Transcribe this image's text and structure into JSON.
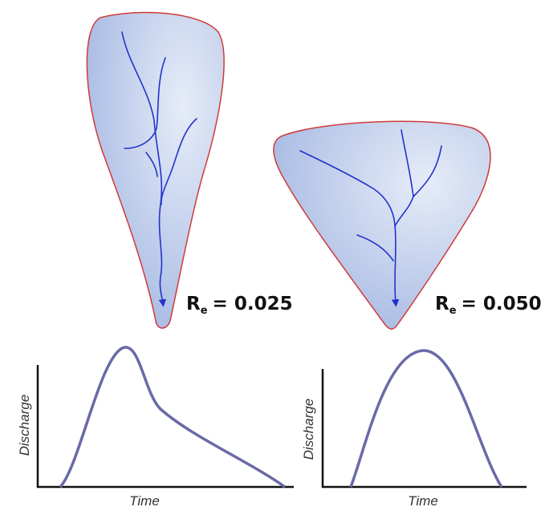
{
  "basins": [
    {
      "label": {
        "symbol": "R",
        "subscript": "e",
        "value": "= 0.025"
      },
      "hydrograph": {
        "y_axis_label": "Discharge",
        "x_axis_label": "Time"
      }
    },
    {
      "label": {
        "symbol": "R",
        "subscript": "e",
        "value": "= 0.050"
      },
      "hydrograph": {
        "y_axis_label": "Discharge",
        "x_axis_label": "Time"
      }
    }
  ]
}
